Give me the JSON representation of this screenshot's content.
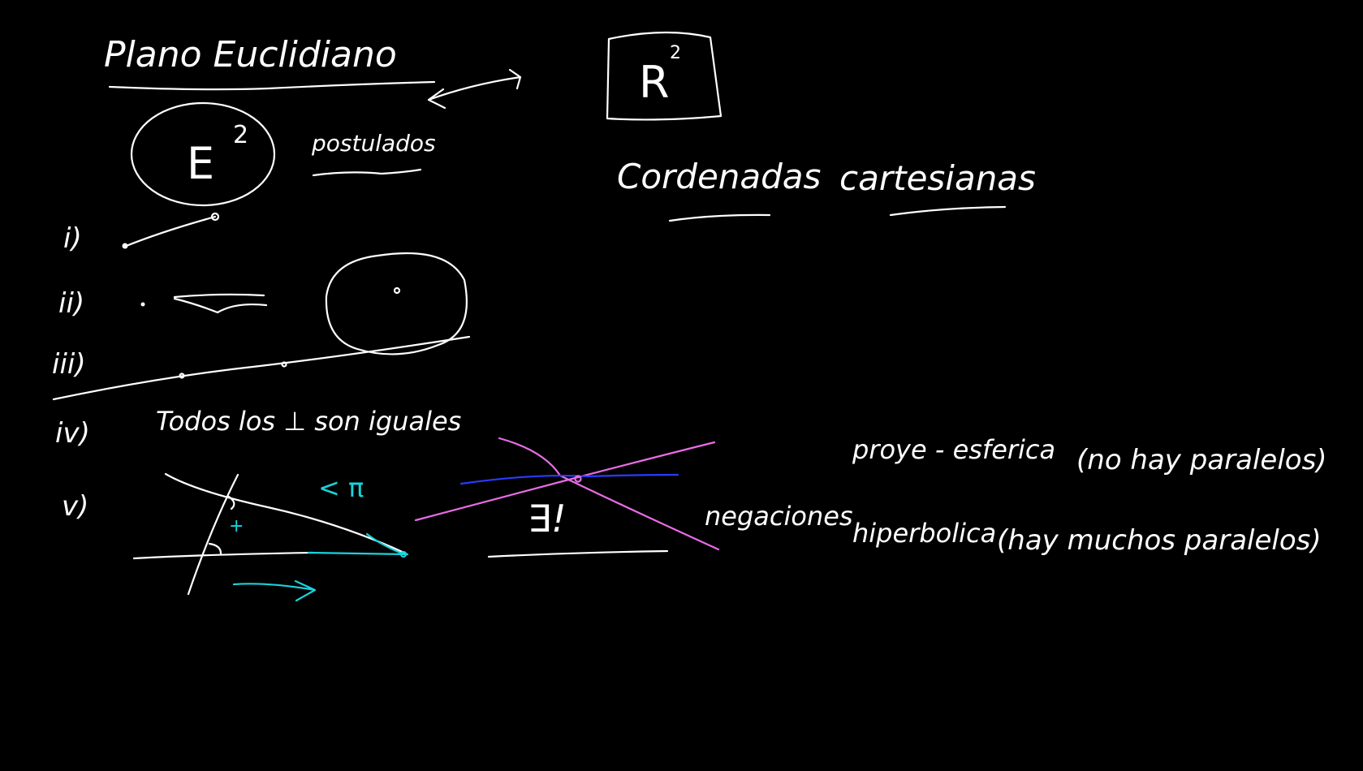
{
  "title": "Plano Euclidiano",
  "r2": {
    "letter": "R",
    "exp": "2"
  },
  "e2": {
    "letter": "E",
    "exp": "2"
  },
  "postulados": "postulados",
  "cartesianas": {
    "word1": "Cordenadas",
    "word2": "cartesianas"
  },
  "roman": {
    "i": "i)",
    "ii": "ii)",
    "iii": "iii)",
    "iv": "iv)",
    "v": "v)"
  },
  "iv_text": "Todos los ⊥ son iguales",
  "v_angle": "< π",
  "v_plus": "+",
  "exists_unique": "∃!",
  "negaciones": "negaciones",
  "proye": "proye - esferica",
  "proye_paren": "(no hay paralelos)",
  "hiper": "hiperbolica",
  "hiper_paren": "(hay muchos paralelos)",
  "colors": {
    "background": "#000000",
    "chalk": "#ffffff",
    "cyan": "#19d3dc",
    "pink": "#e86ce6",
    "blue": "#2a3bff"
  }
}
